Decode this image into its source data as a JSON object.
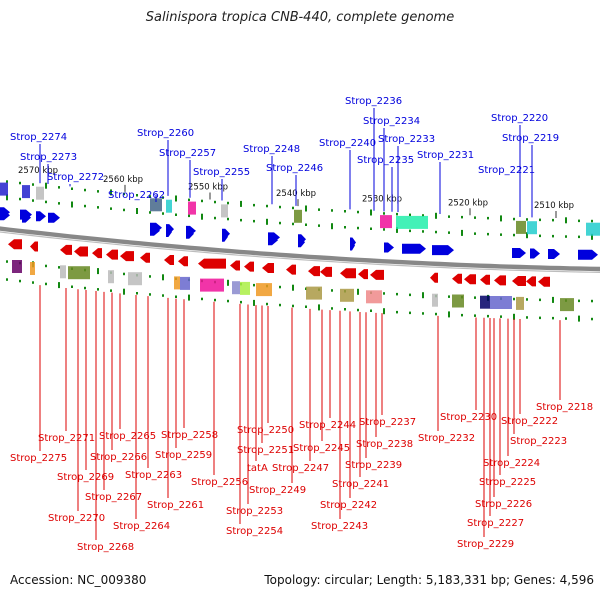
{
  "title": "Salinispora tropica CNB-440, complete genome",
  "footer": {
    "accession": "Accession: NC_009380",
    "topology": "Topology: circular; Length: 5,183,331 bp; Genes: 4,596"
  },
  "colors": {
    "forward": "#0000dd",
    "reverse": "#dd0000",
    "backbone": "#888888",
    "dots": "#118811"
  },
  "ticks": [
    {
      "label": "2570 kbp"
    },
    {
      "label": "2560 kbp"
    },
    {
      "label": "2550 kbp"
    },
    {
      "label": "2540 kbp"
    },
    {
      "label": "2530 kbp"
    },
    {
      "label": "2520 kbp"
    },
    {
      "label": "2510 kbp"
    }
  ],
  "forward_labels": [
    {
      "text": "Strop_2274"
    },
    {
      "text": "Strop_2273"
    },
    {
      "text": "Strop_2272"
    },
    {
      "text": "Strop_2262"
    },
    {
      "text": "Strop_2260"
    },
    {
      "text": "Strop_2257"
    },
    {
      "text": "Strop_2255"
    },
    {
      "text": "Strop_2248"
    },
    {
      "text": "Strop_2246"
    },
    {
      "text": "Strop_2240"
    },
    {
      "text": "Strop_2236"
    },
    {
      "text": "Strop_2234"
    },
    {
      "text": "Strop_2233"
    },
    {
      "text": "Strop_2235"
    },
    {
      "text": "Strop_2231"
    },
    {
      "text": "Strop_2220"
    },
    {
      "text": "Strop_2219"
    },
    {
      "text": "Strop_2221"
    }
  ],
  "reverse_labels": [
    {
      "text": "Strop_2218"
    },
    {
      "text": "Strop_2222"
    },
    {
      "text": "Strop_2223"
    },
    {
      "text": "Strop_2224"
    },
    {
      "text": "Strop_2225"
    },
    {
      "text": "Strop_2226"
    },
    {
      "text": "Strop_2227"
    },
    {
      "text": "Strop_2229"
    },
    {
      "text": "Strop_2230"
    },
    {
      "text": "Strop_2232"
    },
    {
      "text": "Strop_2237"
    },
    {
      "text": "Strop_2238"
    },
    {
      "text": "Strop_2239"
    },
    {
      "text": "Strop_2241"
    },
    {
      "text": "Strop_2242"
    },
    {
      "text": "Strop_2243"
    },
    {
      "text": "Strop_2244"
    },
    {
      "text": "Strop_2245"
    },
    {
      "text": "Strop_2247"
    },
    {
      "text": "Strop_2249"
    },
    {
      "text": "Strop_2250"
    },
    {
      "text": "Strop_2251"
    },
    {
      "text": "tatA"
    },
    {
      "text": "Strop_2253"
    },
    {
      "text": "Strop_2254"
    },
    {
      "text": "Strop_2256"
    },
    {
      "text": "Strop_2258"
    },
    {
      "text": "Strop_2259"
    },
    {
      "text": "Strop_2261"
    },
    {
      "text": "Strop_2263"
    },
    {
      "text": "Strop_2264"
    },
    {
      "text": "Strop_2265"
    },
    {
      "text": "Strop_2266"
    },
    {
      "text": "Strop_2267"
    },
    {
      "text": "Strop_2268"
    },
    {
      "text": "Strop_2269"
    },
    {
      "text": "Strop_2270"
    },
    {
      "text": "Strop_2271"
    },
    {
      "text": "Strop_2275"
    }
  ]
}
